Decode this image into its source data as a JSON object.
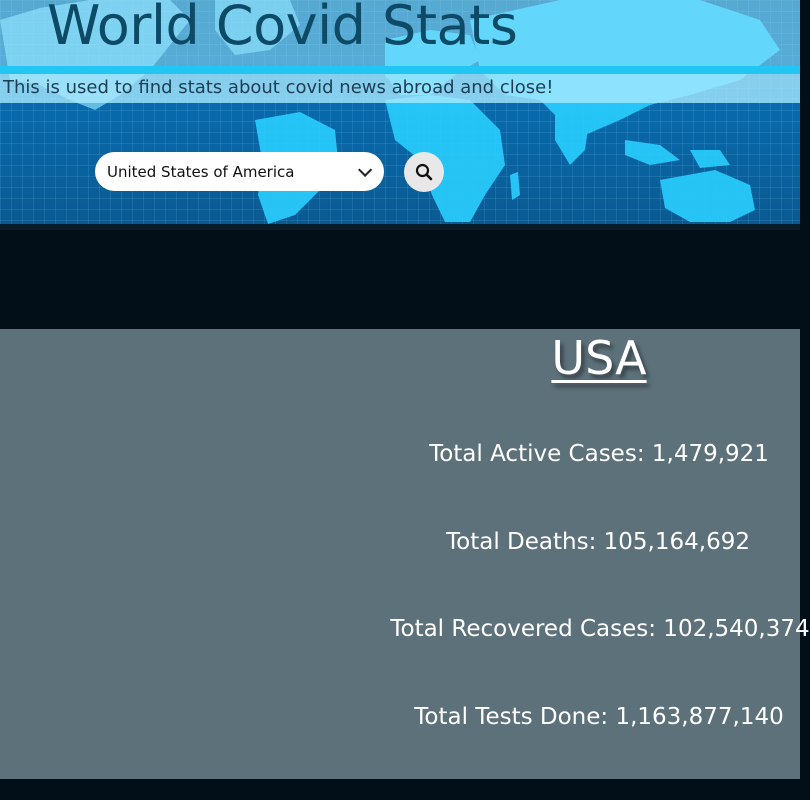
{
  "header": {
    "title": "World Covid Stats",
    "subtitle": "This is used to find stats about covid news abroad and close!"
  },
  "search": {
    "selected_country": "United States of America",
    "button_icon": "search-icon"
  },
  "stats": {
    "country": "USA",
    "lines": [
      {
        "label": "Total Active Cases: 1,479,921"
      },
      {
        "label": "Total Deaths: 105,164,692"
      },
      {
        "label": "Total Recovered Cases: 102,540,374"
      },
      {
        "label": "Total Tests Done: 1,163,877,140"
      }
    ]
  },
  "colors": {
    "header_blue": "#086bad",
    "panel_gray": "#5d717b",
    "page_dark": "#030f18",
    "accent_cyan": "#22c6f2"
  }
}
